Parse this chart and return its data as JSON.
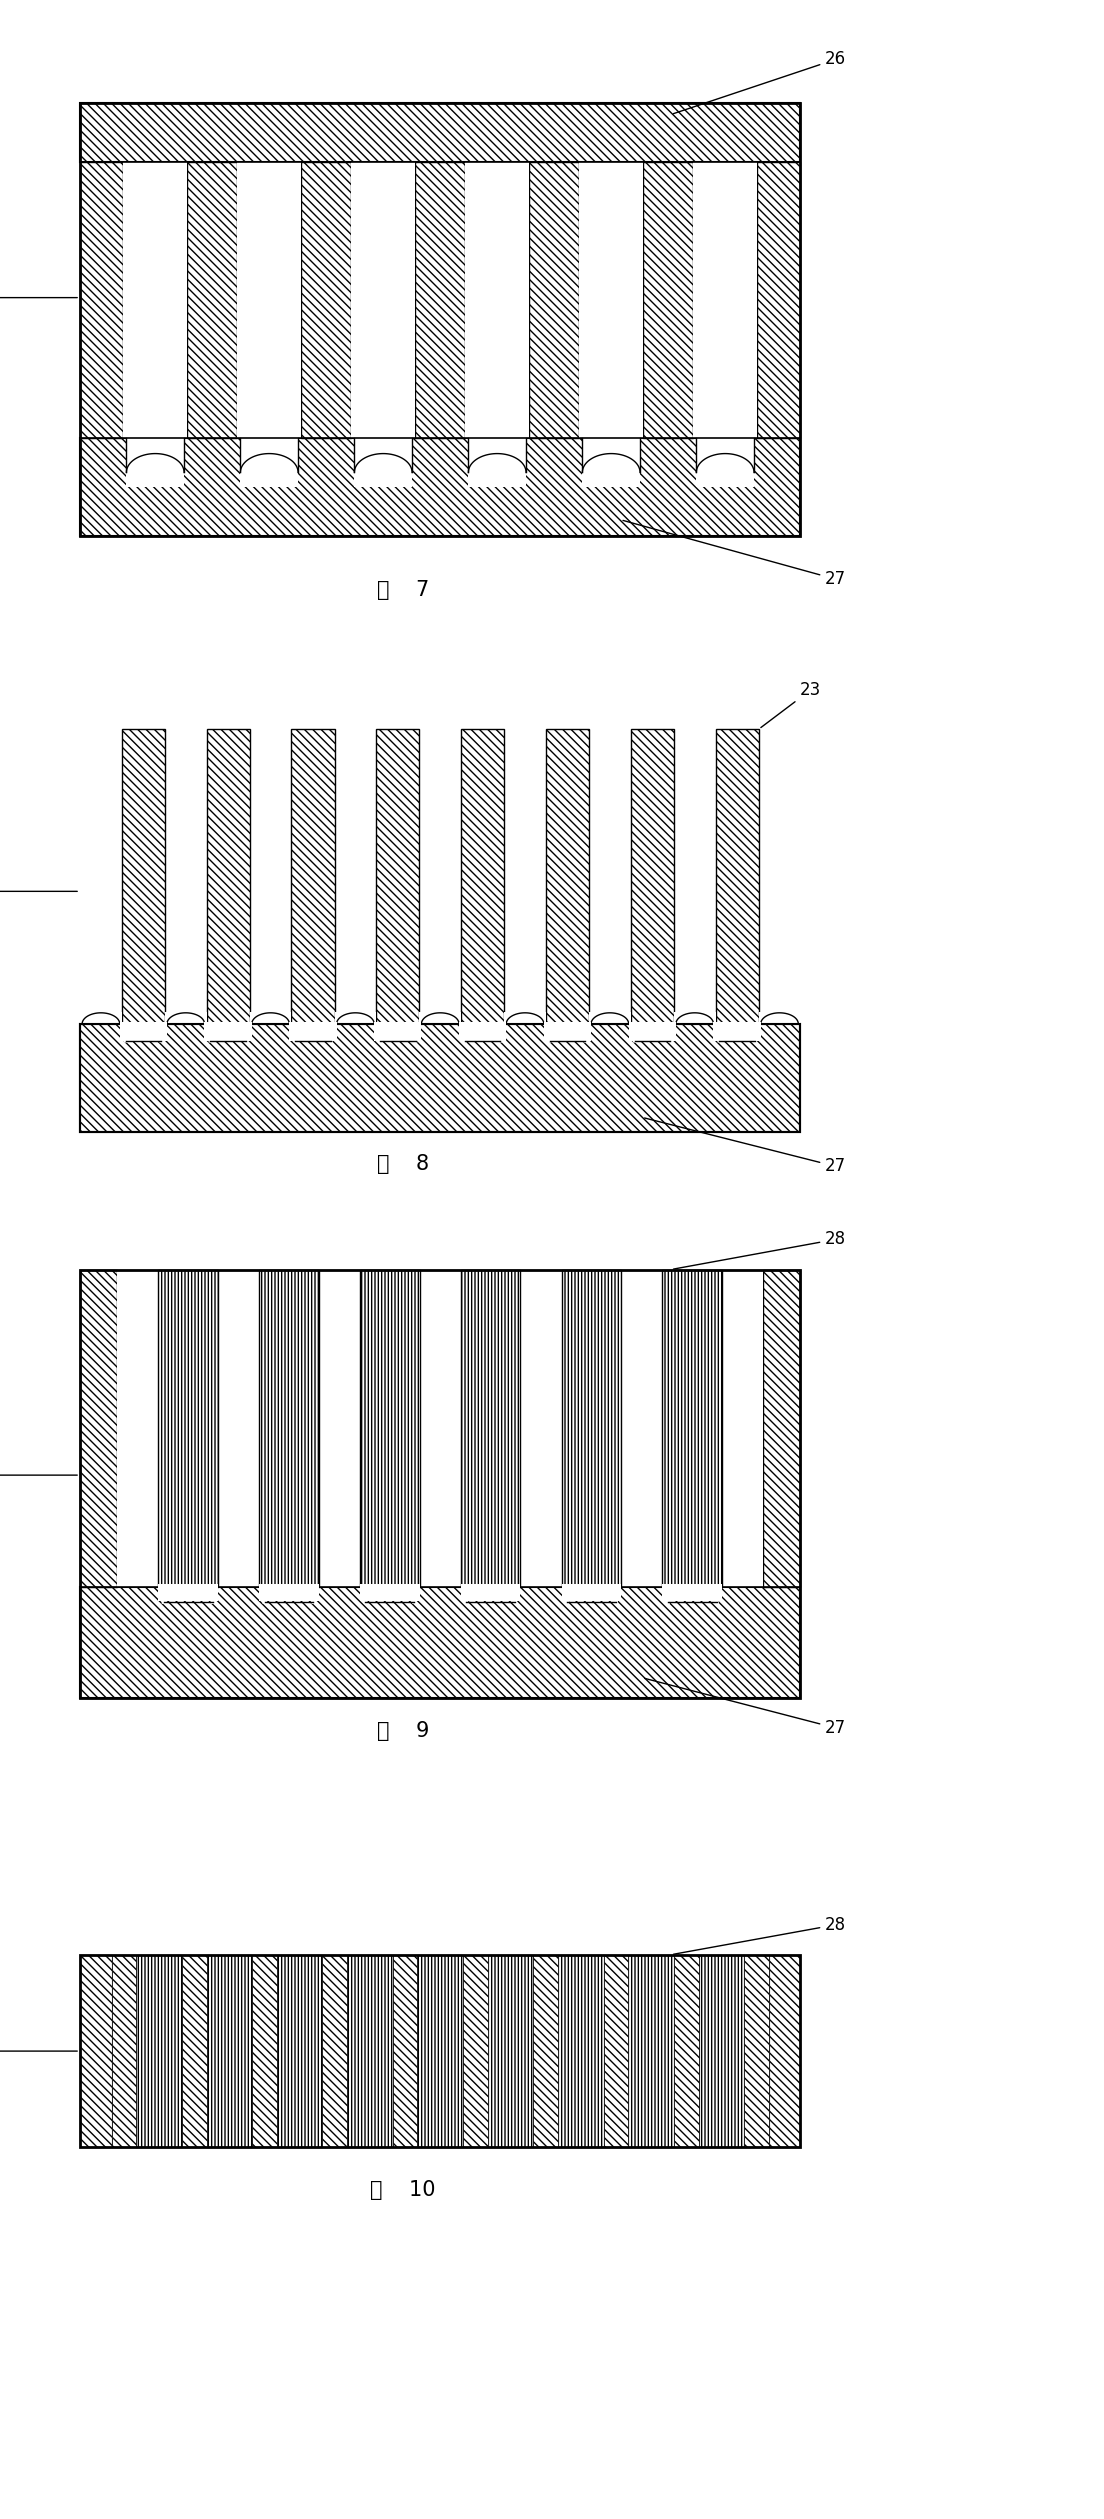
{
  "fig_width": 11.04,
  "fig_height": 25.19,
  "bg_color": "#ffffff",
  "figures": [
    {
      "fig_num": "7",
      "labels": {
        "20": [
          0.05,
          0.5
        ],
        "26": [
          0.88,
          1.05
        ],
        "27": [
          0.85,
          -0.08
        ]
      }
    },
    {
      "fig_num": "8",
      "labels": {
        "20": [
          -0.08,
          0.55
        ],
        "23": [
          0.92,
          1.08
        ],
        "27": [
          0.88,
          -0.07
        ]
      }
    },
    {
      "fig_num": "9",
      "labels": {
        "20": [
          -0.08,
          0.5
        ],
        "28": [
          0.9,
          1.06
        ],
        "27": [
          0.86,
          -0.07
        ]
      }
    },
    {
      "fig_num": "10",
      "labels": {
        "20": [
          -0.08,
          0.5
        ],
        "28": [
          0.9,
          1.06
        ]
      }
    }
  ]
}
